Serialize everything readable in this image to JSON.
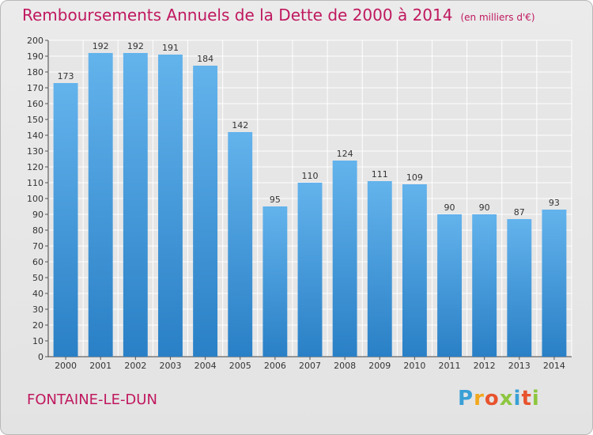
{
  "header": {
    "title": "Remboursements Annuels de la Dette de 2000 à 2014",
    "unit": "(en milliers d'€)"
  },
  "footer": {
    "commune": "FONTAINE-LE-DUN",
    "logo_letters": [
      "P",
      "r",
      "o",
      "x",
      "i",
      "t",
      "i"
    ],
    "logo_colors": [
      "#3aa0d6",
      "#f2a81d",
      "#e8532e",
      "#8dc63f",
      "#3aa0d6",
      "#e8532e",
      "#8dc63f"
    ]
  },
  "chart_data": {
    "type": "bar",
    "title": "Remboursements Annuels de la Dette de 2000 à 2014",
    "ylabel": "en milliers d'€",
    "xlabel": "",
    "categories": [
      "2000",
      "2001",
      "2002",
      "2003",
      "2004",
      "2005",
      "2006",
      "2007",
      "2008",
      "2009",
      "2010",
      "2011",
      "2012",
      "2013",
      "2014"
    ],
    "values": [
      173,
      192,
      192,
      191,
      184,
      142,
      95,
      110,
      124,
      111,
      109,
      90,
      90,
      87,
      93
    ],
    "ylim": [
      0,
      200
    ],
    "yticks": [
      0,
      10,
      20,
      30,
      40,
      50,
      60,
      70,
      80,
      90,
      100,
      110,
      120,
      130,
      140,
      150,
      160,
      170,
      180,
      190,
      200
    ],
    "grid": true,
    "bar_color_top": "#63b3ec",
    "bar_color_bottom": "#2a80c6"
  }
}
